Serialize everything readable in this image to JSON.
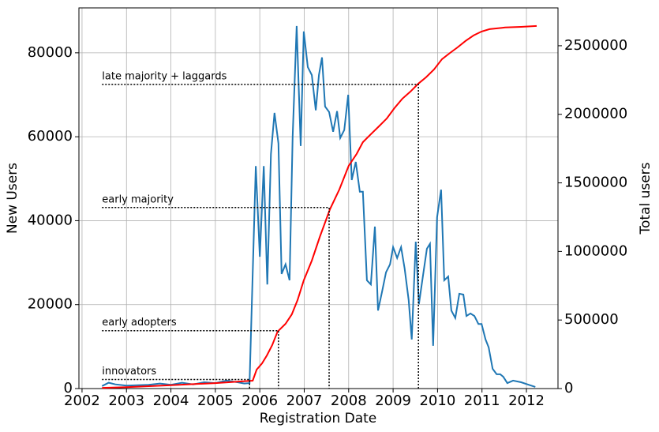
{
  "chart_data": {
    "type": "line",
    "xlabel": "Registration Date",
    "ylabel": "New Users",
    "y2label": "Total users",
    "xlim": [
      2001.93,
      2012.71
    ],
    "xticks": [
      2002,
      2003,
      2004,
      2005,
      2006,
      2007,
      2008,
      2009,
      2010,
      2011,
      2012
    ],
    "ylim": [
      0,
      90700
    ],
    "yticks": [
      0,
      20000,
      40000,
      60000,
      80000
    ],
    "y2lim": [
      0,
      2776000
    ],
    "y2ticks": [
      0,
      500000,
      1000000,
      1500000,
      2000000,
      2500000
    ],
    "grid": true,
    "series": [
      {
        "name": "New Users",
        "color": "#1f77b4",
        "x": [
          2002.45,
          2002.6,
          2002.75,
          2003.0,
          2003.25,
          2003.5,
          2003.75,
          2004.0,
          2004.25,
          2004.5,
          2004.75,
          2005.0,
          2005.25,
          2005.5,
          2005.65,
          2005.77,
          2005.91,
          2006.0,
          2006.09,
          2006.17,
          2006.25,
          2006.33,
          2006.42,
          2006.49,
          2006.58,
          2006.67,
          2006.74,
          2006.83,
          2006.92,
          2006.99,
          2007.08,
          2007.17,
          2007.26,
          2007.33,
          2007.4,
          2007.47,
          2007.56,
          2007.65,
          2007.74,
          2007.81,
          2007.9,
          2007.99,
          2008.07,
          2008.16,
          2008.25,
          2008.32,
          2008.41,
          2008.5,
          2008.59,
          2008.66,
          2008.75,
          2008.84,
          2008.93,
          2009.0,
          2009.09,
          2009.18,
          2009.26,
          2009.35,
          2009.42,
          2009.51,
          2009.58,
          2009.67,
          2009.76,
          2009.83,
          2009.9,
          2009.99,
          2010.08,
          2010.15,
          2010.24,
          2010.31,
          2010.4,
          2010.49,
          2010.58,
          2010.65,
          2010.74,
          2010.83,
          2010.92,
          2010.99,
          2011.08,
          2011.15,
          2011.24,
          2011.33,
          2011.41,
          2011.48,
          2011.57,
          2011.7,
          2011.88,
          2012.05,
          2012.2
        ],
        "values": [
          600,
          1400,
          1000,
          700,
          800,
          900,
          1200,
          900,
          1400,
          1000,
          1500,
          1300,
          1900,
          1500,
          1200,
          1300,
          53000,
          31400,
          53000,
          24800,
          55900,
          65700,
          58400,
          27300,
          29600,
          25800,
          60000,
          86400,
          57800,
          85100,
          76600,
          74700,
          66300,
          74700,
          78900,
          67200,
          65900,
          61200,
          66100,
          59700,
          61600,
          70000,
          49700,
          54000,
          46900,
          46900,
          25800,
          24800,
          38600,
          18600,
          23000,
          27700,
          29600,
          33700,
          31100,
          33700,
          28600,
          21100,
          11700,
          35000,
          20100,
          26700,
          33300,
          34500,
          10200,
          40800,
          47400,
          25800,
          26700,
          18600,
          16800,
          22600,
          22400,
          17300,
          17900,
          17300,
          15400,
          15400,
          11700,
          9800,
          4700,
          3400,
          3400,
          2800,
          1300,
          1900,
          1500,
          900,
          400
        ]
      },
      {
        "name": "Total users",
        "color": "#ff0000",
        "axis": "y2",
        "x": [
          2002.45,
          2003.0,
          2004.0,
          2005.0,
          2005.7,
          2005.84,
          2005.93,
          2006.05,
          2006.16,
          2006.28,
          2006.4,
          2006.58,
          2006.72,
          2006.85,
          2006.99,
          2007.17,
          2007.35,
          2007.58,
          2007.79,
          2008.0,
          2008.18,
          2008.32,
          2008.5,
          2008.68,
          2008.86,
          2009.03,
          2009.21,
          2009.39,
          2009.57,
          2009.74,
          2009.92,
          2010.1,
          2010.28,
          2010.45,
          2010.63,
          2010.81,
          2010.99,
          2011.17,
          2011.52,
          2011.88,
          2012.23
        ],
        "values": [
          5000,
          10000,
          25000,
          40000,
          55000,
          57600,
          138000,
          184000,
          242000,
          317000,
          415000,
          472000,
          541000,
          645000,
          789000,
          933000,
          1106000,
          1308000,
          1452000,
          1624000,
          1711000,
          1797000,
          1855000,
          1912000,
          1970000,
          2045000,
          2114000,
          2166000,
          2224000,
          2270000,
          2327000,
          2402000,
          2448000,
          2488000,
          2535000,
          2575000,
          2604000,
          2621000,
          2633000,
          2638000,
          2644000
        ]
      }
    ],
    "annotations": [
      {
        "text": "innovators",
        "x": 2005.77,
        "y": 66000
      },
      {
        "text": "early adopters",
        "x": 2006.42,
        "y": 422000
      },
      {
        "text": "early majority",
        "x": 2007.56,
        "y": 1320000
      },
      {
        "text": "late majority + laggards",
        "x": 2009.57,
        "y": 2218000
      }
    ]
  }
}
